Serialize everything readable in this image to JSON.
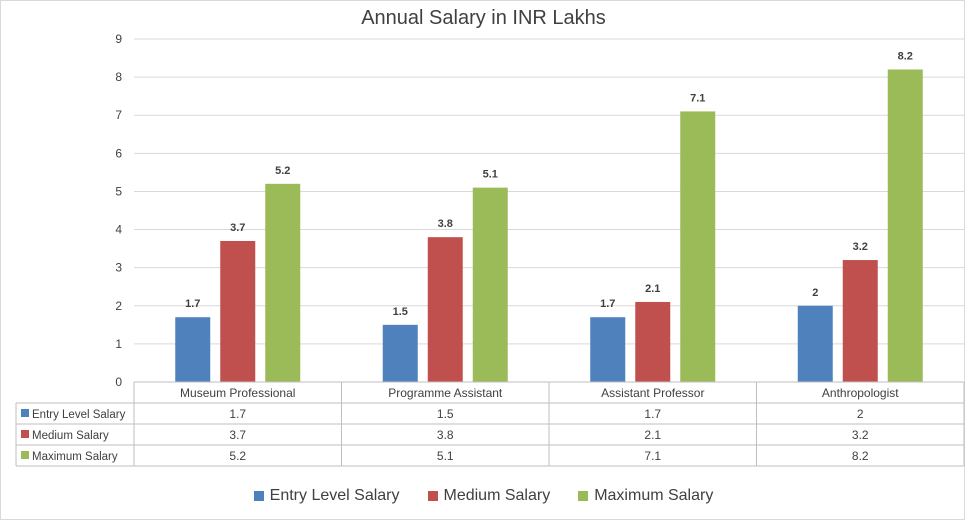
{
  "chart_data": {
    "type": "bar",
    "title": "Annual Salary in INR Lakhs",
    "categories": [
      "Museum Professional",
      "Programme Assistant",
      "Assistant Professor",
      "Anthropologist"
    ],
    "series": [
      {
        "name": "Entry Level Salary",
        "color": "#4f81bd",
        "values": [
          1.7,
          1.5,
          1.7,
          2
        ],
        "labels": [
          "1.7",
          "1.5",
          "1.7",
          "2"
        ]
      },
      {
        "name": "Medium Salary",
        "color": "#c0504d",
        "values": [
          3.7,
          3.8,
          2.1,
          3.2
        ],
        "labels": [
          "3.7",
          "3.8",
          "2.1",
          "3.2"
        ]
      },
      {
        "name": "Maximum Salary",
        "color": "#9bbb59",
        "values": [
          5.2,
          5.1,
          7.1,
          8.2
        ],
        "labels": [
          "5.2",
          "5.1",
          "7.1",
          "8.2"
        ]
      }
    ],
    "ylim": [
      0,
      9
    ],
    "yticks": [
      "0",
      "1",
      "2",
      "3",
      "4",
      "5",
      "6",
      "7",
      "8",
      "9"
    ],
    "grid": true,
    "legend": "bottom",
    "data_table": true
  }
}
